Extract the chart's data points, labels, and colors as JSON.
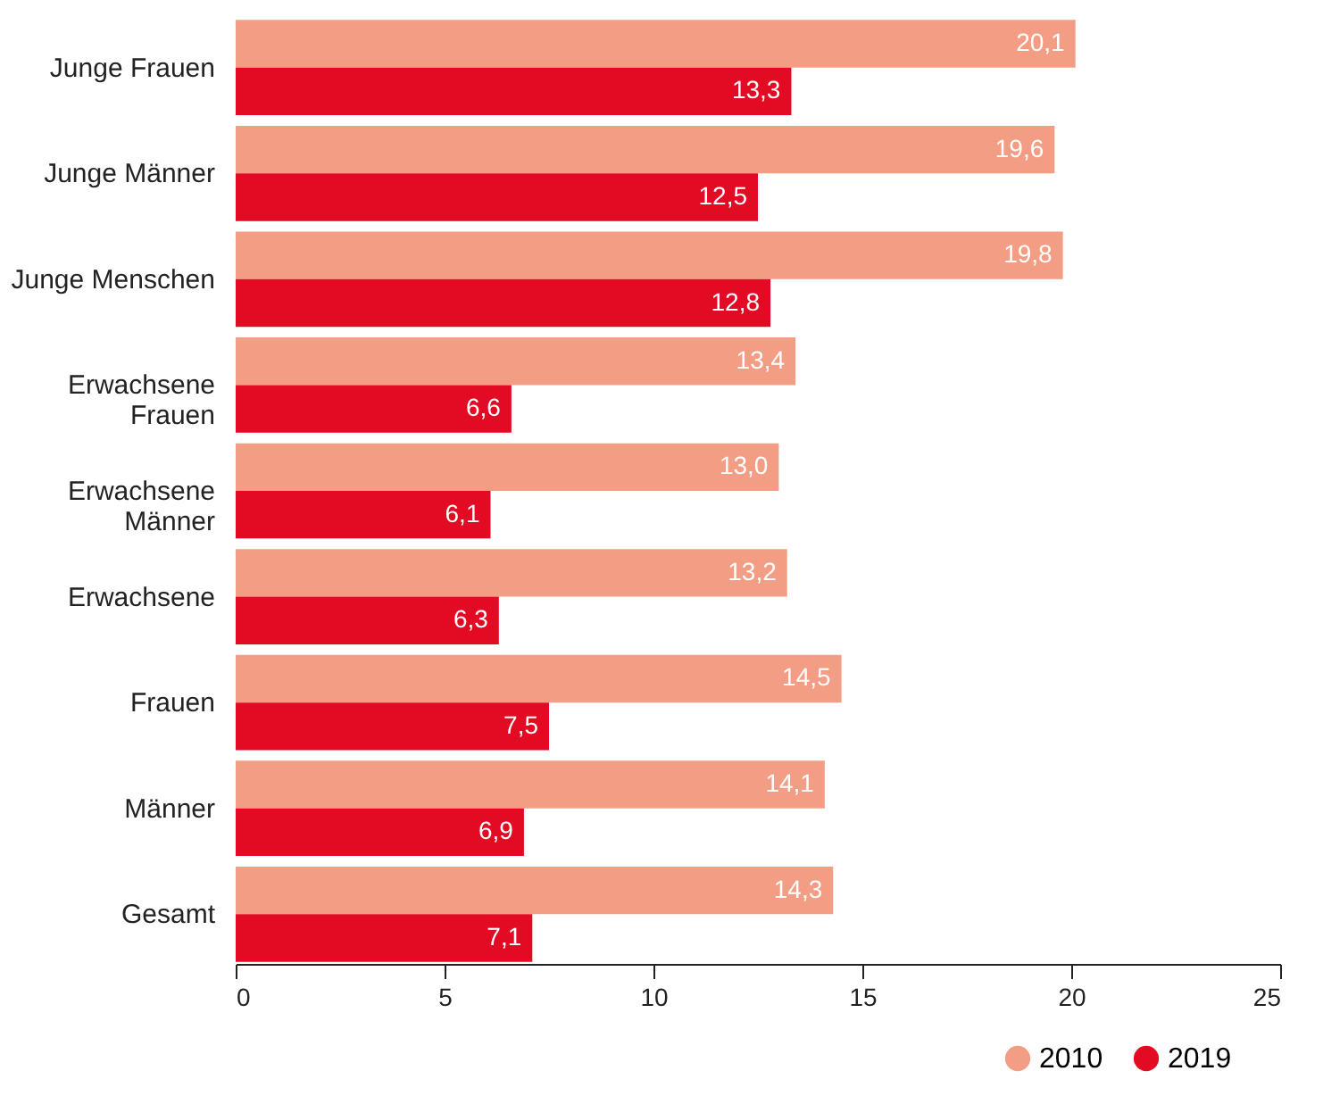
{
  "chart_data": {
    "type": "bar",
    "orientation": "horizontal",
    "categories": [
      "Junge Frauen",
      "Junge Männer",
      "Junge Menschen",
      "Erwachsene Frauen",
      "Erwachsene Männer",
      "Erwachsene",
      "Frauen",
      "Männer",
      "Gesamt"
    ],
    "series": [
      {
        "name": "2010",
        "color": "#f39e84",
        "values": [
          20.1,
          19.6,
          19.8,
          13.4,
          13.0,
          13.2,
          14.5,
          14.1,
          14.3
        ],
        "value_labels": [
          "20,1",
          "19,6",
          "19,8",
          "13,4",
          "13,0",
          "13,2",
          "14,5",
          "14,1",
          "14,3"
        ]
      },
      {
        "name": "2019",
        "color": "#e30a23",
        "values": [
          13.3,
          12.5,
          12.8,
          6.6,
          6.1,
          6.3,
          7.5,
          6.9,
          7.1
        ],
        "value_labels": [
          "13,3",
          "12,5",
          "12,8",
          "6,6",
          "6,1",
          "6,3",
          "7,5",
          "6,9",
          "7,1"
        ]
      }
    ],
    "xlim": [
      0,
      25
    ],
    "xticks": [
      0,
      5,
      10,
      15,
      20,
      25
    ],
    "grid": false,
    "legend": "bottom right"
  }
}
